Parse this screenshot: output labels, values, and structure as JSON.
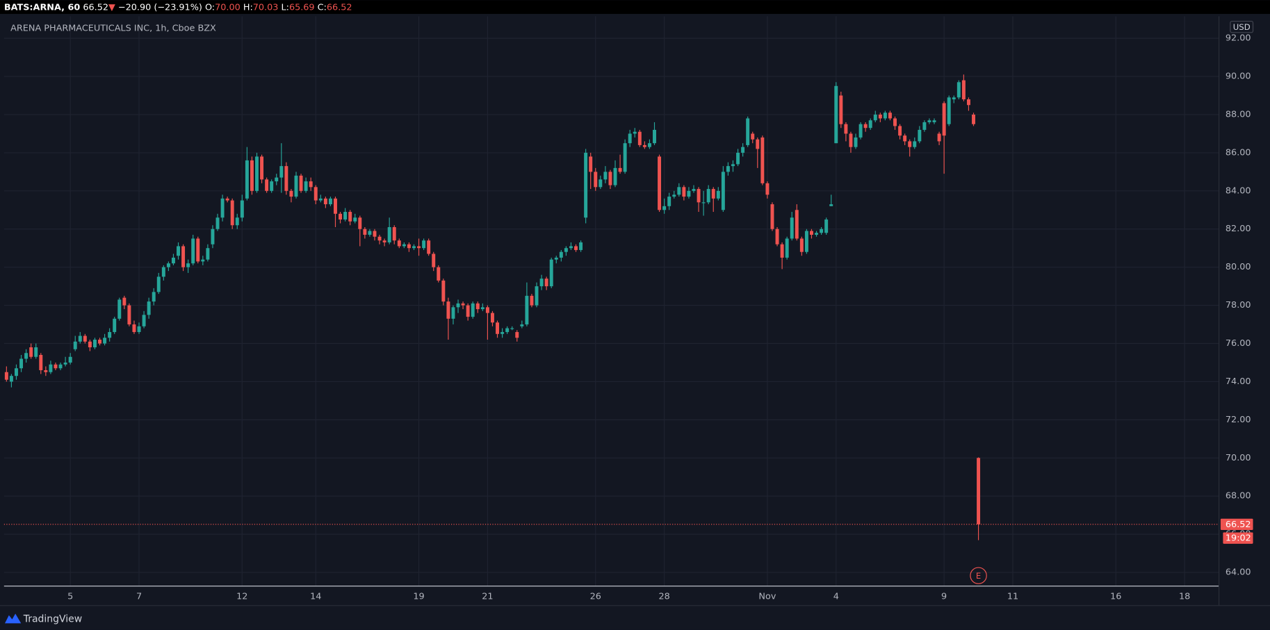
{
  "header": {
    "symbol": "BATS:ARNA, 60",
    "price": "66.52",
    "arrow": "▼",
    "change": "−20.90 (−23.91%)",
    "open_label": "O:",
    "open": "70.00",
    "high_label": "H:",
    "high": "70.03",
    "low_label": "L:",
    "low": "65.69",
    "close_label": "C:",
    "close": "66.52"
  },
  "footer": {
    "brand": "TradingView"
  },
  "chart_data": {
    "type": "candlestick",
    "title": "ARENA PHARMACEUTICALS INC, 1h, Cboe BZX",
    "currency": "USD",
    "up_color": "#26a69a",
    "down_color": "#ef5350",
    "grid": true,
    "last_price": {
      "value": 66.52,
      "label": "66.52"
    },
    "countdown": "19:02",
    "event_marker": "E",
    "xlim": [
      -0.5,
      247
    ],
    "ylim": [
      63.28,
      93.15
    ],
    "xticks": [
      {
        "value": 13,
        "label": "5"
      },
      {
        "value": 27,
        "label": "7"
      },
      {
        "value": 48,
        "label": "12"
      },
      {
        "value": 63,
        "label": "14"
      },
      {
        "value": 84,
        "label": "19"
      },
      {
        "value": 98,
        "label": "21"
      },
      {
        "value": 120,
        "label": "26"
      },
      {
        "value": 134,
        "label": "28"
      },
      {
        "value": 155,
        "label": "Nov"
      },
      {
        "value": 169,
        "label": "4"
      },
      {
        "value": 191,
        "label": "9"
      },
      {
        "value": 205,
        "label": "11"
      },
      {
        "value": 226,
        "label": "16"
      },
      {
        "value": 240,
        "label": "18"
      }
    ],
    "yticks": [
      {
        "value": 64,
        "label": "64.00"
      },
      {
        "value": 66,
        "label": "66.00"
      },
      {
        "value": 68,
        "label": "68.00"
      },
      {
        "value": 70,
        "label": "70.00"
      },
      {
        "value": 72,
        "label": "72.00"
      },
      {
        "value": 74,
        "label": "74.00"
      },
      {
        "value": 76,
        "label": "76.00"
      },
      {
        "value": 78,
        "label": "78.00"
      },
      {
        "value": 80,
        "label": "80.00"
      },
      {
        "value": 82,
        "label": "82.00"
      },
      {
        "value": 84,
        "label": "84.00"
      },
      {
        "value": 86,
        "label": "86.00"
      },
      {
        "value": 88,
        "label": "88.00"
      },
      {
        "value": 90,
        "label": "90.00"
      },
      {
        "value": 92,
        "label": "92.00"
      }
    ],
    "candles": [
      [
        74.5,
        74.8,
        74.0,
        74.1
      ],
      [
        74.0,
        74.4,
        73.7,
        74.3
      ],
      [
        74.3,
        74.9,
        74.1,
        74.7
      ],
      [
        74.7,
        75.4,
        74.5,
        75.2
      ],
      [
        75.2,
        75.7,
        75.0,
        75.5
      ],
      [
        75.8,
        76.0,
        75.2,
        75.3
      ],
      [
        75.3,
        76.0,
        75.2,
        75.8
      ],
      [
        75.4,
        75.5,
        74.4,
        74.6
      ],
      [
        74.6,
        74.8,
        74.3,
        74.5
      ],
      [
        74.5,
        75.1,
        74.4,
        74.9
      ],
      [
        74.9,
        75.0,
        74.6,
        74.7
      ],
      [
        74.7,
        75.0,
        74.6,
        74.9
      ],
      [
        74.9,
        75.3,
        74.8,
        75.0
      ],
      [
        75.0,
        75.5,
        74.9,
        75.3
      ],
      [
        75.7,
        76.4,
        75.6,
        76.1
      ],
      [
        76.1,
        76.6,
        76.0,
        76.4
      ],
      [
        76.4,
        76.5,
        76.0,
        76.1
      ],
      [
        76.1,
        76.2,
        75.6,
        75.8
      ],
      [
        75.8,
        76.3,
        75.7,
        76.2
      ],
      [
        76.2,
        76.3,
        75.9,
        76.0
      ],
      [
        76.0,
        76.5,
        75.9,
        76.3
      ],
      [
        76.3,
        76.8,
        76.1,
        76.6
      ],
      [
        76.6,
        77.4,
        76.5,
        77.3
      ],
      [
        77.3,
        78.4,
        77.2,
        78.3
      ],
      [
        78.4,
        78.5,
        77.8,
        78.0
      ],
      [
        78.0,
        78.1,
        76.9,
        77.0
      ],
      [
        77.0,
        77.2,
        76.5,
        76.6
      ],
      [
        76.6,
        77.1,
        76.5,
        76.9
      ],
      [
        76.9,
        77.7,
        76.8,
        77.5
      ],
      [
        77.5,
        78.4,
        77.3,
        78.2
      ],
      [
        78.2,
        78.9,
        78.0,
        78.7
      ],
      [
        78.7,
        79.7,
        78.6,
        79.5
      ],
      [
        79.5,
        80.1,
        79.3,
        80.0
      ],
      [
        80.0,
        80.3,
        79.8,
        80.2
      ],
      [
        80.2,
        80.7,
        80.1,
        80.5
      ],
      [
        80.6,
        81.3,
        80.4,
        81.1
      ],
      [
        81.1,
        81.2,
        79.8,
        80.0
      ],
      [
        80.0,
        80.4,
        79.7,
        80.2
      ],
      [
        80.2,
        81.7,
        80.1,
        81.5
      ],
      [
        81.5,
        81.6,
        80.2,
        80.3
      ],
      [
        80.3,
        80.6,
        80.1,
        80.4
      ],
      [
        80.4,
        81.2,
        80.3,
        81.0
      ],
      [
        81.2,
        82.2,
        81.0,
        82.0
      ],
      [
        82.0,
        82.8,
        81.9,
        82.6
      ],
      [
        82.6,
        83.8,
        82.4,
        83.6
      ],
      [
        83.6,
        83.7,
        83.4,
        83.5
      ],
      [
        83.5,
        83.6,
        82.0,
        82.2
      ],
      [
        82.2,
        82.8,
        82.0,
        82.6
      ],
      [
        82.6,
        83.8,
        82.4,
        83.5
      ],
      [
        83.6,
        86.3,
        83.5,
        85.6
      ],
      [
        85.6,
        85.8,
        83.8,
        84.0
      ],
      [
        84.0,
        86.0,
        83.9,
        85.8
      ],
      [
        85.8,
        85.9,
        84.4,
        84.6
      ],
      [
        84.6,
        84.7,
        83.9,
        84.0
      ],
      [
        84.0,
        84.6,
        83.9,
        84.5
      ],
      [
        84.5,
        84.9,
        84.3,
        84.7
      ],
      [
        84.7,
        86.5,
        83.9,
        85.3
      ],
      [
        85.3,
        85.5,
        83.8,
        84.0
      ],
      [
        84.0,
        84.1,
        83.4,
        83.7
      ],
      [
        83.7,
        85.0,
        83.6,
        84.8
      ],
      [
        84.8,
        84.9,
        83.9,
        84.0
      ],
      [
        84.0,
        84.7,
        83.9,
        84.5
      ],
      [
        84.5,
        84.7,
        84.0,
        84.2
      ],
      [
        84.2,
        84.3,
        83.3,
        83.5
      ],
      [
        83.5,
        83.8,
        83.4,
        83.6
      ],
      [
        83.6,
        83.7,
        83.1,
        83.3
      ],
      [
        83.3,
        83.7,
        83.2,
        83.6
      ],
      [
        83.6,
        83.7,
        82.1,
        82.8
      ],
      [
        82.8,
        82.9,
        82.3,
        82.5
      ],
      [
        82.5,
        83.1,
        82.4,
        82.9
      ],
      [
        82.9,
        83.0,
        82.2,
        82.4
      ],
      [
        82.4,
        82.8,
        82.3,
        82.6
      ],
      [
        82.6,
        82.7,
        81.1,
        82.0
      ],
      [
        82.0,
        82.1,
        81.5,
        81.7
      ],
      [
        81.7,
        82.0,
        81.6,
        81.9
      ],
      [
        81.9,
        82.0,
        81.4,
        81.6
      ],
      [
        81.6,
        81.7,
        81.2,
        81.4
      ],
      [
        81.4,
        81.5,
        81.1,
        81.3
      ],
      [
        81.3,
        82.6,
        81.2,
        82.1
      ],
      [
        82.1,
        82.2,
        81.2,
        81.4
      ],
      [
        81.4,
        81.5,
        81.0,
        81.1
      ],
      [
        81.1,
        81.3,
        81.0,
        81.2
      ],
      [
        81.2,
        81.3,
        80.8,
        81.0
      ],
      [
        81.0,
        81.2,
        80.9,
        81.1
      ],
      [
        81.1,
        81.5,
        80.6,
        81.0
      ],
      [
        81.0,
        81.5,
        80.9,
        81.4
      ],
      [
        81.4,
        81.5,
        80.6,
        80.7
      ],
      [
        80.7,
        80.8,
        79.8,
        80.0
      ],
      [
        80.0,
        80.1,
        79.2,
        79.3
      ],
      [
        79.3,
        79.4,
        78.0,
        78.2
      ],
      [
        78.2,
        78.4,
        76.2,
        77.3
      ],
      [
        77.3,
        78.0,
        77.0,
        77.9
      ],
      [
        77.9,
        78.3,
        77.6,
        78.1
      ],
      [
        78.1,
        78.2,
        77.8,
        78.0
      ],
      [
        78.0,
        78.1,
        77.2,
        77.4
      ],
      [
        77.4,
        78.2,
        77.3,
        78.1
      ],
      [
        78.1,
        78.2,
        77.6,
        77.8
      ],
      [
        77.8,
        78.1,
        77.7,
        77.9
      ],
      [
        77.9,
        78.0,
        76.2,
        77.6
      ],
      [
        77.6,
        77.7,
        76.9,
        77.1
      ],
      [
        77.1,
        77.2,
        76.3,
        76.5
      ],
      [
        76.5,
        76.8,
        76.3,
        76.6
      ],
      [
        76.6,
        76.9,
        76.5,
        76.8
      ],
      [
        76.8,
        76.9,
        76.7,
        76.8
      ],
      [
        76.6,
        76.7,
        76.1,
        76.3
      ],
      [
        76.9,
        77.2,
        76.8,
        77.0
      ],
      [
        77.0,
        79.2,
        76.9,
        78.5
      ],
      [
        78.5,
        78.6,
        77.9,
        78.0
      ],
      [
        78.0,
        79.2,
        77.9,
        79.0
      ],
      [
        79.0,
        79.6,
        78.8,
        79.4
      ],
      [
        79.4,
        79.5,
        78.8,
        79.0
      ],
      [
        79.0,
        80.5,
        78.9,
        80.4
      ],
      [
        80.4,
        80.6,
        80.2,
        80.5
      ],
      [
        80.5,
        80.9,
        80.3,
        80.8
      ],
      [
        80.8,
        81.1,
        80.6,
        81.0
      ],
      [
        81.0,
        81.3,
        80.9,
        81.1
      ],
      [
        81.1,
        81.2,
        80.8,
        80.9
      ],
      [
        80.9,
        81.4,
        80.8,
        81.3
      ],
      [
        82.6,
        86.2,
        82.3,
        86.0
      ],
      [
        85.8,
        86.0,
        84.1,
        85.0
      ],
      [
        85.0,
        85.2,
        84.0,
        84.2
      ],
      [
        84.2,
        84.8,
        84.1,
        84.6
      ],
      [
        84.6,
        85.3,
        84.4,
        85.0
      ],
      [
        85.0,
        85.1,
        84.1,
        84.3
      ],
      [
        84.3,
        85.6,
        84.2,
        85.2
      ],
      [
        85.2,
        85.9,
        84.9,
        85.0
      ],
      [
        85.0,
        86.7,
        84.9,
        86.5
      ],
      [
        86.5,
        87.2,
        86.3,
        87.0
      ],
      [
        87.0,
        87.3,
        86.8,
        87.1
      ],
      [
        87.1,
        87.2,
        86.3,
        86.4
      ],
      [
        86.4,
        86.6,
        86.2,
        86.3
      ],
      [
        86.3,
        86.7,
        86.2,
        86.5
      ],
      [
        86.5,
        87.6,
        86.4,
        87.2
      ],
      [
        85.8,
        85.9,
        82.9,
        83.0
      ],
      [
        83.0,
        83.6,
        82.8,
        83.2
      ],
      [
        83.2,
        83.9,
        83.0,
        83.7
      ],
      [
        83.7,
        84.0,
        83.6,
        83.8
      ],
      [
        83.8,
        84.4,
        83.7,
        84.2
      ],
      [
        84.2,
        84.3,
        83.5,
        83.7
      ],
      [
        83.7,
        84.2,
        83.6,
        84.0
      ],
      [
        84.0,
        84.3,
        83.9,
        84.1
      ],
      [
        84.1,
        84.2,
        82.9,
        83.4
      ],
      [
        83.4,
        84.0,
        82.7,
        83.4
      ],
      [
        83.4,
        84.3,
        83.3,
        84.1
      ],
      [
        84.1,
        84.2,
        82.9,
        83.6
      ],
      [
        83.6,
        84.2,
        83.5,
        84.0
      ],
      [
        83.0,
        85.3,
        82.9,
        85.0
      ],
      [
        85.0,
        85.5,
        84.8,
        85.3
      ],
      [
        85.3,
        85.6,
        85.0,
        85.4
      ],
      [
        85.4,
        86.2,
        85.3,
        86.0
      ],
      [
        86.0,
        86.5,
        85.8,
        86.3
      ],
      [
        86.4,
        87.9,
        86.3,
        87.8
      ],
      [
        87.0,
        87.1,
        86.5,
        86.7
      ],
      [
        86.7,
        86.8,
        85.2,
        86.2
      ],
      [
        86.8,
        86.9,
        84.3,
        84.4
      ],
      [
        84.4,
        84.5,
        83.6,
        83.8
      ],
      [
        83.3,
        83.4,
        81.9,
        82.0
      ],
      [
        82.0,
        82.1,
        81.1,
        81.2
      ],
      [
        81.2,
        81.3,
        79.9,
        80.5
      ],
      [
        80.5,
        81.6,
        80.4,
        81.5
      ],
      [
        81.5,
        82.9,
        81.4,
        82.6
      ],
      [
        83.0,
        83.3,
        81.4,
        81.5
      ],
      [
        81.5,
        81.6,
        80.6,
        80.8
      ],
      [
        80.8,
        82.0,
        80.7,
        81.9
      ],
      [
        81.9,
        82.0,
        81.5,
        81.7
      ],
      [
        81.7,
        81.9,
        81.6,
        81.8
      ],
      [
        81.8,
        82.1,
        81.7,
        82.0
      ],
      [
        81.8,
        82.6,
        81.7,
        82.5
      ],
      [
        83.2,
        83.8,
        83.2,
        83.3
      ],
      [
        86.5,
        89.7,
        86.5,
        89.5
      ],
      [
        89.0,
        89.2,
        87.3,
        87.5
      ],
      [
        87.5,
        87.6,
        86.6,
        87.0
      ],
      [
        87.0,
        87.1,
        86.0,
        86.3
      ],
      [
        86.3,
        87.0,
        86.2,
        86.8
      ],
      [
        86.8,
        87.6,
        86.7,
        87.5
      ],
      [
        87.5,
        87.6,
        87.1,
        87.3
      ],
      [
        87.3,
        87.8,
        87.2,
        87.7
      ],
      [
        87.7,
        88.2,
        87.6,
        88.0
      ],
      [
        88.0,
        88.1,
        87.6,
        87.8
      ],
      [
        87.8,
        88.2,
        87.7,
        88.1
      ],
      [
        88.1,
        88.2,
        87.7,
        87.8
      ],
      [
        87.8,
        87.9,
        87.2,
        87.4
      ],
      [
        87.4,
        87.5,
        86.7,
        86.9
      ],
      [
        86.9,
        87.0,
        86.4,
        86.6
      ],
      [
        86.6,
        86.7,
        85.8,
        86.3
      ],
      [
        86.3,
        86.8,
        86.2,
        86.6
      ],
      [
        86.6,
        87.4,
        86.5,
        87.2
      ],
      [
        87.2,
        87.7,
        87.1,
        87.6
      ],
      [
        87.6,
        87.8,
        87.5,
        87.7
      ],
      [
        87.6,
        87.8,
        87.5,
        87.7
      ],
      [
        87.0,
        87.1,
        86.4,
        86.6
      ],
      [
        88.6,
        88.7,
        84.9,
        86.9
      ],
      [
        87.5,
        89.0,
        87.4,
        88.9
      ],
      [
        88.8,
        89.0,
        88.6,
        88.9
      ],
      [
        88.9,
        89.8,
        88.8,
        89.7
      ],
      [
        89.8,
        90.1,
        88.7,
        88.8
      ],
      [
        88.8,
        88.9,
        88.2,
        88.5
      ],
      [
        88.0,
        88.1,
        87.4,
        87.5
      ],
      [
        70.0,
        70.03,
        65.69,
        66.52
      ]
    ]
  }
}
